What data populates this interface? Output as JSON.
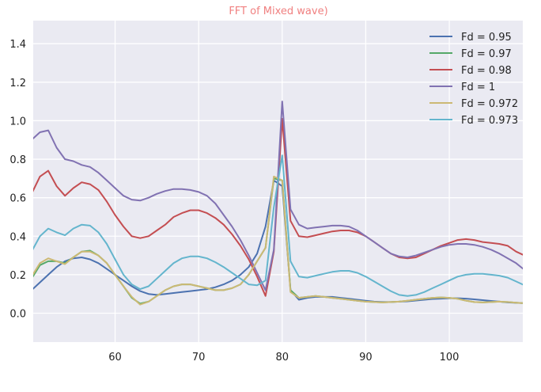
{
  "chart_data": {
    "type": "line",
    "title": "FFT of Mixed wave)",
    "title_color": "#f08080",
    "xlabel": "",
    "ylabel": "",
    "xlim": [
      50.2,
      108.8
    ],
    "ylim": [
      -0.15,
      1.52
    ],
    "xticks": [
      60,
      70,
      80,
      90,
      100
    ],
    "yticks": [
      0.0,
      0.2,
      0.4,
      0.6,
      0.8,
      1.0,
      1.2,
      1.4
    ],
    "xtick_labels": [
      "60",
      "70",
      "80",
      "90",
      "100"
    ],
    "ytick_labels": [
      "0.0",
      "0.2",
      "0.4",
      "0.6",
      "0.8",
      "1.0",
      "1.2",
      "1.4"
    ],
    "grid": true,
    "background": "#eaeaf2",
    "legend_position": "top-right",
    "x": [
      50,
      51,
      52,
      53,
      54,
      55,
      56,
      57,
      58,
      59,
      60,
      61,
      62,
      63,
      64,
      65,
      66,
      67,
      68,
      69,
      70,
      71,
      72,
      73,
      74,
      75,
      76,
      77,
      78,
      79,
      80,
      81,
      82,
      83,
      84,
      85,
      86,
      87,
      88,
      89,
      90,
      91,
      92,
      93,
      94,
      95,
      96,
      97,
      98,
      99,
      100,
      101,
      102,
      103,
      104,
      105,
      106,
      107,
      108,
      109
    ],
    "series": [
      {
        "name": "Fd = 0.95",
        "color": "#4c72b0",
        "values": [
          0.12,
          0.16,
          0.2,
          0.24,
          0.27,
          0.285,
          0.29,
          0.28,
          0.26,
          0.23,
          0.2,
          0.17,
          0.14,
          0.115,
          0.1,
          0.095,
          0.1,
          0.105,
          0.11,
          0.115,
          0.12,
          0.125,
          0.135,
          0.15,
          0.17,
          0.2,
          0.24,
          0.31,
          0.45,
          0.69,
          0.66,
          0.12,
          0.07,
          0.08,
          0.085,
          0.085,
          0.085,
          0.08,
          0.075,
          0.07,
          0.065,
          0.06,
          0.058,
          0.058,
          0.06,
          0.062,
          0.066,
          0.07,
          0.074,
          0.076,
          0.078,
          0.078,
          0.076,
          0.072,
          0.068,
          0.064,
          0.06,
          0.056,
          0.054,
          0.052
        ]
      },
      {
        "name": "Fd = 0.97",
        "color": "#55a868",
        "values": [
          0.18,
          0.25,
          0.27,
          0.27,
          0.26,
          0.29,
          0.32,
          0.325,
          0.3,
          0.26,
          0.2,
          0.14,
          0.08,
          0.05,
          0.06,
          0.09,
          0.12,
          0.14,
          0.15,
          0.15,
          0.14,
          0.13,
          0.12,
          0.12,
          0.13,
          0.15,
          0.2,
          0.27,
          0.34,
          0.7,
          0.69,
          0.12,
          0.08,
          0.085,
          0.09,
          0.085,
          0.08,
          0.075,
          0.07,
          0.065,
          0.06,
          0.058,
          0.056,
          0.058,
          0.06,
          0.065,
          0.07,
          0.075,
          0.08,
          0.082,
          0.08,
          0.075,
          0.065,
          0.058,
          0.056,
          0.058,
          0.06,
          0.058,
          0.055,
          0.052
        ]
      },
      {
        "name": "Fd = 0.98",
        "color": "#c44e52",
        "values": [
          0.62,
          0.71,
          0.74,
          0.66,
          0.61,
          0.65,
          0.68,
          0.67,
          0.64,
          0.58,
          0.51,
          0.45,
          0.4,
          0.39,
          0.4,
          0.43,
          0.46,
          0.5,
          0.52,
          0.535,
          0.535,
          0.52,
          0.495,
          0.46,
          0.41,
          0.35,
          0.28,
          0.19,
          0.09,
          0.32,
          1.01,
          0.48,
          0.4,
          0.395,
          0.405,
          0.415,
          0.425,
          0.43,
          0.43,
          0.42,
          0.4,
          0.37,
          0.34,
          0.31,
          0.29,
          0.285,
          0.29,
          0.31,
          0.33,
          0.35,
          0.365,
          0.38,
          0.385,
          0.38,
          0.37,
          0.365,
          0.36,
          0.35,
          0.32,
          0.3
        ]
      },
      {
        "name": "Fd = 1",
        "color": "#8172b2",
        "values": [
          0.9,
          0.94,
          0.95,
          0.86,
          0.8,
          0.79,
          0.77,
          0.76,
          0.73,
          0.69,
          0.65,
          0.61,
          0.59,
          0.585,
          0.6,
          0.62,
          0.635,
          0.645,
          0.645,
          0.64,
          0.63,
          0.61,
          0.57,
          0.51,
          0.45,
          0.38,
          0.3,
          0.21,
          0.12,
          0.33,
          1.1,
          0.54,
          0.46,
          0.44,
          0.445,
          0.45,
          0.455,
          0.455,
          0.45,
          0.43,
          0.4,
          0.37,
          0.34,
          0.31,
          0.295,
          0.29,
          0.3,
          0.315,
          0.33,
          0.345,
          0.355,
          0.36,
          0.36,
          0.355,
          0.345,
          0.33,
          0.31,
          0.285,
          0.26,
          0.225
        ]
      },
      {
        "name": "Fd = 0.972",
        "color": "#ccb974",
        "values": [
          0.19,
          0.26,
          0.285,
          0.27,
          0.255,
          0.29,
          0.32,
          0.32,
          0.3,
          0.26,
          0.2,
          0.14,
          0.085,
          0.045,
          0.06,
          0.09,
          0.12,
          0.14,
          0.15,
          0.15,
          0.14,
          0.13,
          0.12,
          0.12,
          0.13,
          0.15,
          0.2,
          0.27,
          0.34,
          0.71,
          0.69,
          0.11,
          0.08,
          0.085,
          0.09,
          0.085,
          0.08,
          0.075,
          0.07,
          0.065,
          0.06,
          0.058,
          0.056,
          0.058,
          0.06,
          0.065,
          0.07,
          0.075,
          0.08,
          0.082,
          0.08,
          0.075,
          0.065,
          0.058,
          0.056,
          0.058,
          0.06,
          0.058,
          0.055,
          0.052
        ]
      },
      {
        "name": "Fd = 0.973",
        "color": "#64b5cd",
        "values": [
          0.32,
          0.4,
          0.44,
          0.42,
          0.405,
          0.44,
          0.46,
          0.455,
          0.42,
          0.36,
          0.28,
          0.2,
          0.15,
          0.125,
          0.14,
          0.18,
          0.22,
          0.26,
          0.285,
          0.295,
          0.295,
          0.285,
          0.265,
          0.24,
          0.21,
          0.18,
          0.15,
          0.145,
          0.17,
          0.55,
          0.82,
          0.27,
          0.19,
          0.185,
          0.195,
          0.205,
          0.215,
          0.22,
          0.22,
          0.21,
          0.19,
          0.165,
          0.14,
          0.115,
          0.095,
          0.09,
          0.095,
          0.11,
          0.13,
          0.15,
          0.17,
          0.19,
          0.2,
          0.205,
          0.205,
          0.2,
          0.195,
          0.185,
          0.165,
          0.145
        ]
      }
    ]
  }
}
